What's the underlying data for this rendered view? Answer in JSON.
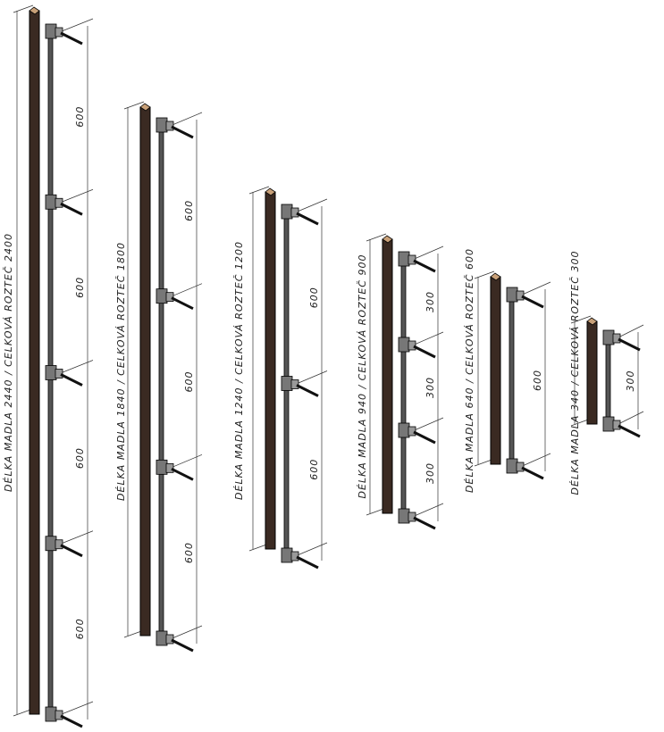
{
  "variants": [
    {
      "label": "DÉLKA MADLA 2440 / CELKOVÁ ROZTEČ 2400",
      "spacings": [
        "600",
        "600",
        "600",
        "600"
      ]
    },
    {
      "label": "DÉLKA MADLA 1840 / CELKOVÁ ROZTEČ 1800",
      "spacings": [
        "600",
        "600",
        "600"
      ]
    },
    {
      "label": "DÉLKA MADLA 1240 / CELKOVÁ ROZTEČ 1200",
      "spacings": [
        "600",
        "600"
      ]
    },
    {
      "label": "DÉLKA MADLA 940 / CELKOVÁ ROZTEČ 900",
      "spacings": [
        "300",
        "300",
        "300"
      ]
    },
    {
      "label": "DÉLKA MADLA 640 / CELKOVÁ ROZTEČ 600",
      "spacings": [
        "600"
      ]
    },
    {
      "label": "DÉLKA MADLA 340 / CELKOVÁ ROZTEČ 300",
      "spacings": [
        "300"
      ]
    }
  ]
}
